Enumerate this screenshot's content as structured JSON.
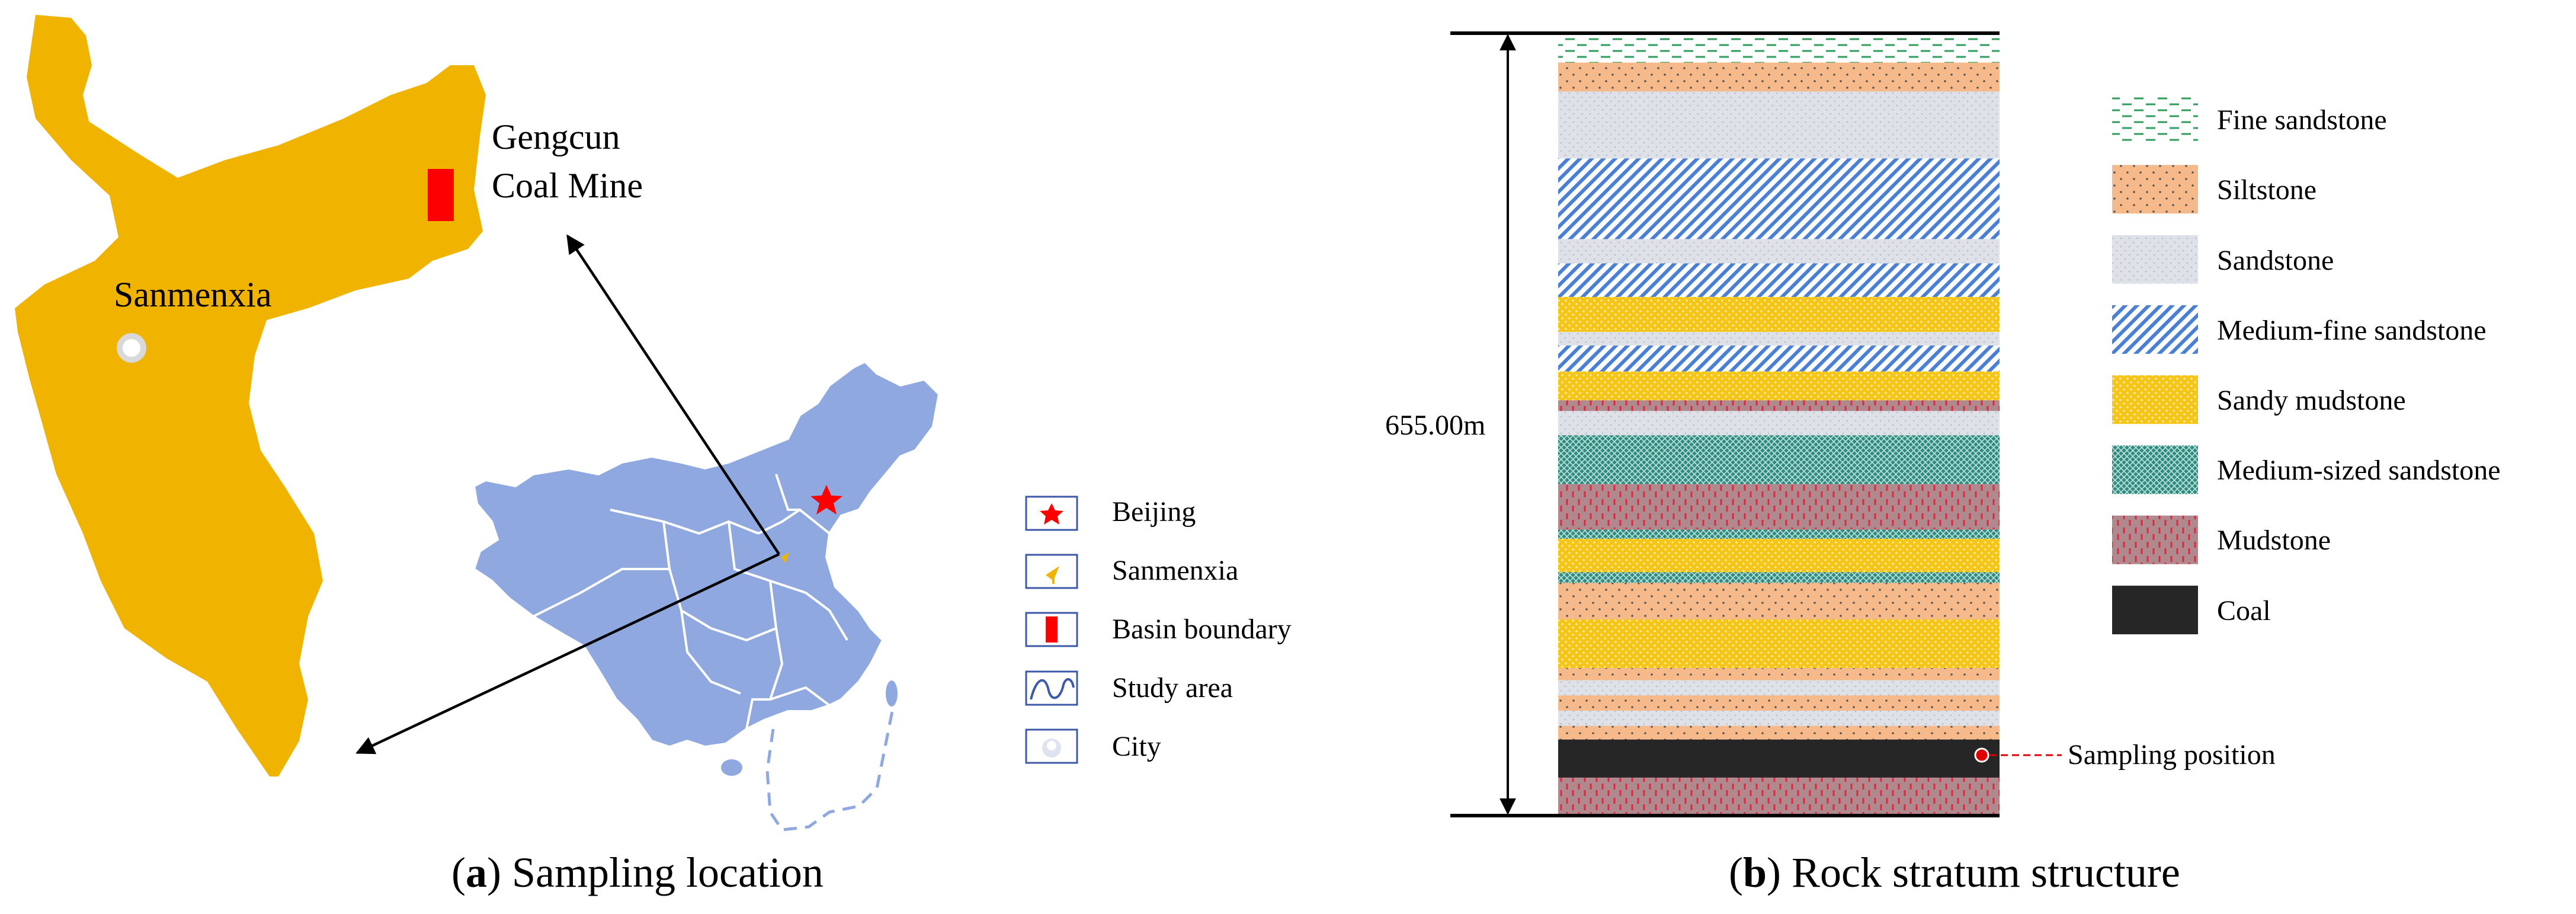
{
  "panel_a": {
    "map_labels": {
      "mine_line1": "Gengcun",
      "mine_line2": "Coal Mine",
      "city": "Sanmenxia"
    },
    "legend": [
      {
        "icon": "red-star-icon",
        "label": "Beijing"
      },
      {
        "icon": "yellow-flag-icon",
        "label": "Sanmenxia"
      },
      {
        "icon": "red-rectangle-icon",
        "label": "Basin boundary"
      },
      {
        "icon": "blue-curve-icon",
        "label": "Study area"
      },
      {
        "icon": "white-dot-icon",
        "label": "City"
      }
    ],
    "caption": {
      "letter": "a",
      "text": " Sampling location"
    },
    "colors": {
      "basin": "#f0b400",
      "china": "#8fa8e0",
      "province_line": "#ffffff",
      "marker": "#ff0000"
    }
  },
  "panel_b": {
    "thickness_label": "655.00m",
    "sampling_label": "Sampling position",
    "legend": [
      {
        "key": "fine",
        "label": "Fine sandstone"
      },
      {
        "key": "silt",
        "label": "Siltstone"
      },
      {
        "key": "sand",
        "label": "Sandstone"
      },
      {
        "key": "medfine",
        "label": "Medium-fine sandstone"
      },
      {
        "key": "sandymud",
        "label": "Sandy mudstone"
      },
      {
        "key": "medsized",
        "label": "Medium-sized sandstone"
      },
      {
        "key": "mud",
        "label": "Mudstone"
      },
      {
        "key": "coal",
        "label": "Coal"
      }
    ],
    "strata_top_to_bottom": [
      "fine",
      "silt",
      "sand",
      "medfine",
      "sand",
      "medfine",
      "sandymud",
      "sand",
      "medfine",
      "sandymud",
      "mud",
      "sand",
      "medsized",
      "mud",
      "medsized",
      "sandymud",
      "medsized",
      "silt",
      "sandymud",
      "silt",
      "sand",
      "silt",
      "sand",
      "silt",
      "coal",
      "mud"
    ],
    "caption": {
      "letter": "b",
      "text": " Rock stratum structure"
    },
    "colors": {
      "silt": "#f5b98a",
      "sand": "#dfe1e8",
      "medfine": "#4a7fd6",
      "sandymud": "#f5c518",
      "medsized": "#2f8a7f",
      "mud": "#b0898e",
      "coal": "#262626",
      "fine": "#2e9e5e"
    }
  }
}
